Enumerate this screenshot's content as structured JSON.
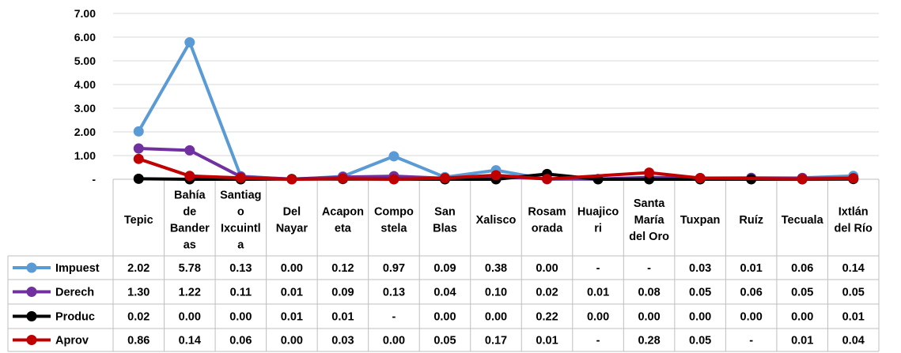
{
  "chart_data": {
    "type": "line",
    "title": "",
    "xlabel": "",
    "ylabel": "",
    "ylim": [
      0,
      7
    ],
    "yticks": [
      "-",
      "1.00",
      "2.00",
      "3.00",
      "4.00",
      "5.00",
      "6.00",
      "7.00"
    ],
    "grid": true,
    "legend": "data-table-left",
    "categories": [
      [
        "Tepic"
      ],
      [
        "Bahía",
        "de",
        "Bander",
        "as"
      ],
      [
        "Santiag",
        "o",
        "Ixcuintl",
        "a"
      ],
      [
        "Del",
        "Nayar"
      ],
      [
        "Acapon",
        "eta"
      ],
      [
        "Compo",
        "stela"
      ],
      [
        "San",
        "Blas"
      ],
      [
        "Xalisco"
      ],
      [
        "Rosam",
        "orada"
      ],
      [
        "Huajico",
        "ri"
      ],
      [
        "Santa",
        "María",
        "del Oro"
      ],
      [
        "Tuxpan"
      ],
      [
        "Ruíz"
      ],
      [
        "Tecuala"
      ],
      [
        "Ixtlán",
        "del Río"
      ]
    ],
    "series": [
      {
        "name": "Impuest",
        "color": "#5b9bd5",
        "values": [
          2.02,
          5.78,
          0.13,
          0.0,
          0.12,
          0.97,
          0.09,
          0.38,
          0.0,
          null,
          null,
          0.03,
          0.01,
          0.06,
          0.14
        ],
        "labels": [
          "2.02",
          "5.78",
          "0.13",
          "0.00",
          "0.12",
          "0.97",
          "0.09",
          "0.38",
          "0.00",
          "-",
          "-",
          "0.03",
          "0.01",
          "0.06",
          "0.14"
        ]
      },
      {
        "name": "Derech",
        "color": "#7030a0",
        "values": [
          1.3,
          1.22,
          0.11,
          0.01,
          0.09,
          0.13,
          0.04,
          0.1,
          0.02,
          0.01,
          0.08,
          0.05,
          0.06,
          0.05,
          0.05
        ],
        "labels": [
          "1.30",
          "1.22",
          "0.11",
          "0.01",
          "0.09",
          "0.13",
          "0.04",
          "0.10",
          "0.02",
          "0.01",
          "0.08",
          "0.05",
          "0.06",
          "0.05",
          "0.05"
        ]
      },
      {
        "name": "Produc",
        "color": "#000000",
        "values": [
          0.02,
          0.0,
          0.0,
          0.01,
          0.01,
          null,
          0.0,
          0.0,
          0.22,
          0.0,
          0.0,
          0.0,
          0.0,
          0.0,
          0.01
        ],
        "labels": [
          "0.02",
          "0.00",
          "0.00",
          "0.01",
          "0.01",
          "-",
          "0.00",
          "0.00",
          "0.22",
          "0.00",
          "0.00",
          "0.00",
          "0.00",
          "0.00",
          "0.01"
        ]
      },
      {
        "name": "Aprov",
        "color": "#c00000",
        "values": [
          0.86,
          0.14,
          0.06,
          0.0,
          0.03,
          0.0,
          0.05,
          0.17,
          0.01,
          null,
          0.28,
          0.05,
          null,
          0.01,
          0.04
        ],
        "labels": [
          "0.86",
          "0.14",
          "0.06",
          "0.00",
          "0.03",
          "0.00",
          "0.05",
          "0.17",
          "0.01",
          "-",
          "0.28",
          "0.05",
          "-",
          "0.01",
          "0.04"
        ]
      }
    ]
  }
}
